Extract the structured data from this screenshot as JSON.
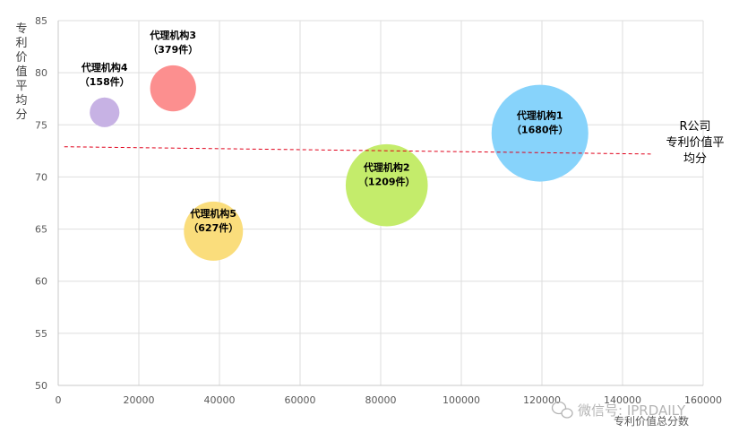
{
  "chart_data": {
    "type": "bubble",
    "xlabel": "专利价值总分数",
    "ylabel": "专利价值平均分",
    "xlim": [
      0,
      160000
    ],
    "ylim": [
      50,
      85
    ],
    "x_ticks": [
      "0",
      "20000",
      "40000",
      "60000",
      "80000",
      "100000",
      "120000",
      "140000",
      "160000"
    ],
    "y_ticks": [
      "50",
      "55",
      "60",
      "65",
      "70",
      "75",
      "80",
      "85"
    ],
    "grid": true,
    "series": [
      {
        "label": "代理机构1",
        "count_label": "（1680件）",
        "x": 119500,
        "y": 74.2,
        "count": 1680,
        "color": "#87d3fb"
      },
      {
        "label": "代理机构2",
        "count_label": "（1209件）",
        "x": 81500,
        "y": 69.2,
        "count": 1209,
        "color": "#c4ec6b"
      },
      {
        "label": "代理机构3",
        "count_label": "（379件）",
        "x": 28500,
        "y": 78.5,
        "count": 379,
        "color": "#fc8f8f"
      },
      {
        "label": "代理机构4",
        "count_label": "（158件）",
        "x": 11500,
        "y": 76.2,
        "count": 158,
        "color": "#c7b2e4"
      },
      {
        "label": "代理机构5",
        "count_label": "（627件）",
        "x": 38500,
        "y": 64.8,
        "count": 627,
        "color": "#fadd7c"
      }
    ],
    "reference_line": {
      "style": "dashed",
      "color": "#e0001a",
      "y_start": 72.9,
      "y_end": 72.2,
      "x_start": 1500,
      "x_end": 147000,
      "annotation": [
        "R公司",
        "专利价值平",
        "均分"
      ]
    }
  },
  "watermark": "微信号: IPRDAILY"
}
